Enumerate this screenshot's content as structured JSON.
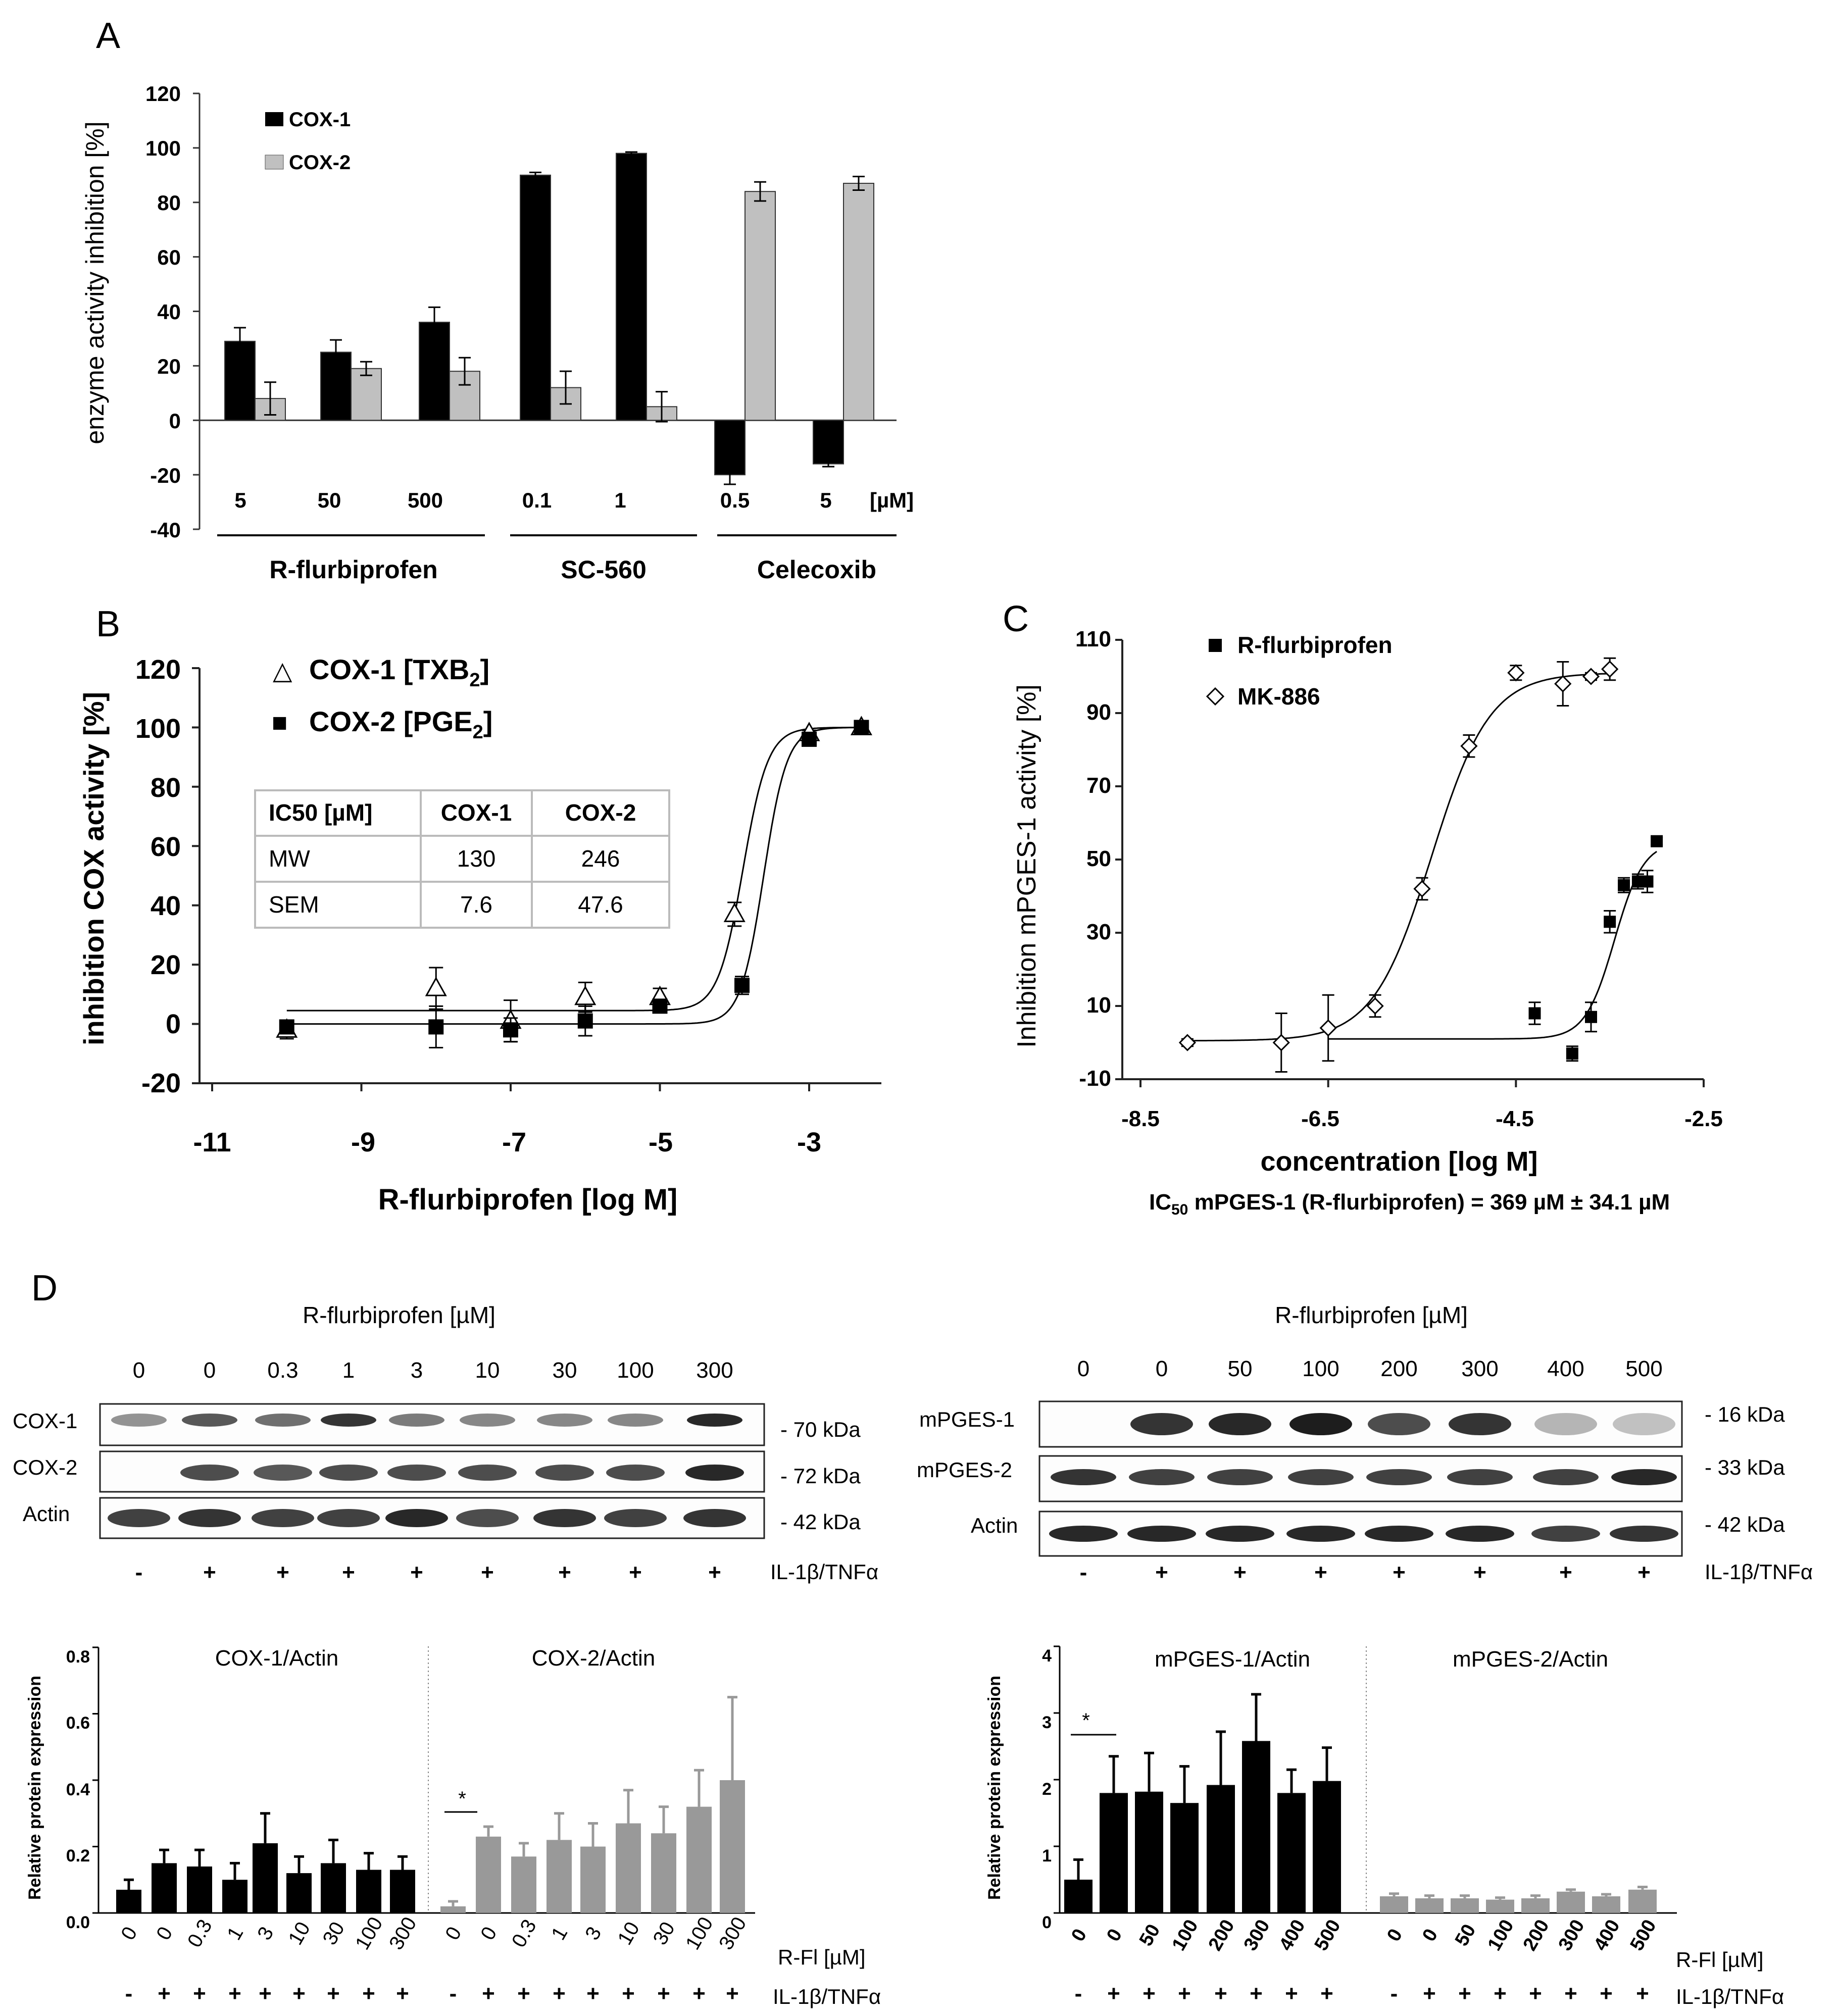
{
  "panels": {
    "A": {
      "letter": "A",
      "ylabel": "enzyme activity inhibition [%]",
      "yticks": [
        "120",
        "100",
        "80",
        "60",
        "40",
        "20",
        "0",
        "-20",
        "-40"
      ],
      "legend": [
        "COX-1",
        "COX-2"
      ],
      "dose_labels": [
        "5",
        "50",
        "500",
        "0.1",
        "1",
        "0.5",
        "5"
      ],
      "unit": "[µM]",
      "groups": [
        "R-flurbiprofen",
        "SC-560",
        "Celecoxib"
      ]
    },
    "B": {
      "letter": "B",
      "ylabel": "inhibition COX activity [%]",
      "xlabel": "R-flurbiprofen [log M]",
      "yticks": [
        "120",
        "100",
        "80",
        "60",
        "40",
        "20",
        "0",
        "-20"
      ],
      "xticks": [
        "-11",
        "-9",
        "-7",
        "-5",
        "-3"
      ],
      "legend": [
        {
          "symbol": "△",
          "main": "COX-1 [TXB",
          "sub": "2",
          "end": "]"
        },
        {
          "symbol": "■",
          "main": "COX-2 [PGE",
          "sub": "2",
          "end": "]"
        }
      ],
      "table": {
        "header": [
          "IC50 [µM]",
          "COX-1",
          "COX-2"
        ],
        "rows": [
          [
            "MW",
            "130",
            "246"
          ],
          [
            "SEM",
            "7.6",
            "47.6"
          ]
        ]
      }
    },
    "C": {
      "letter": "C",
      "ylabel": "Inhibition mPGES-1 activity [%]",
      "xlabel": "concentration [log M]",
      "yticks": [
        "110",
        "90",
        "70",
        "50",
        "30",
        "10",
        "-10"
      ],
      "xticks": [
        "-8.5",
        "-6.5",
        "-4.5",
        "-2.5"
      ],
      "legend": [
        "R-flurbiprofen",
        "MK-886"
      ],
      "ic50": {
        "pre": "IC",
        "sub": "50",
        "post": " mPGES-1 (R-flurbiprofen) = 369 µM ± 34.1 µM"
      }
    },
    "D": {
      "letter": "D",
      "left_blot": {
        "title": "R-flurbiprofen [µM]",
        "lanes": [
          "0",
          "0",
          "0.3",
          "1",
          "3",
          "10",
          "30",
          "100",
          "300"
        ],
        "rows": [
          "COX-1",
          "COX-2",
          "Actin"
        ],
        "kda": [
          "- 70 kDa",
          "- 72 kDa",
          "- 42 kDa"
        ],
        "signs": [
          "-",
          "+",
          "+",
          "+",
          "+",
          "+",
          "+",
          "+",
          "+"
        ],
        "treatment": "IL-1β/TNFα"
      },
      "right_blot": {
        "title": "R-flurbiprofen [µM]",
        "lanes": [
          "0",
          "0",
          "50",
          "100",
          "200",
          "300",
          "400",
          "500"
        ],
        "rows": [
          "mPGES-1",
          "mPGES-2",
          "Actin"
        ],
        "kda": [
          "- 16 kDa",
          "- 33 kDa",
          "- 42 kDa"
        ],
        "signs": [
          "-",
          "+",
          "+",
          "+",
          "+",
          "+",
          "+",
          "+"
        ],
        "treatment": "IL-1β/TNFα"
      },
      "left_bars": {
        "ylabel": "Relative protein expression",
        "yticks": [
          "0.8",
          "0.6",
          "0.4",
          "0.2",
          "0.0"
        ],
        "titles": [
          "COX-1/Actin",
          "COX-2/Actin"
        ],
        "xlabels": [
          "0",
          "0",
          "0.3",
          "1",
          "3",
          "10",
          "30",
          "100",
          "300"
        ],
        "signs": [
          "-",
          "+",
          "+",
          "+",
          "+",
          "+",
          "+",
          "+",
          "+"
        ],
        "rfl": "R-Fl [µM]",
        "treatment": "IL-1β/TNFα",
        "star": "*"
      },
      "right_bars": {
        "ylabel": "Relative protein expression",
        "yticks": [
          "4",
          "3",
          "2",
          "1",
          "0"
        ],
        "titles": [
          "mPGES-1/Actin",
          "mPGES-2/Actin"
        ],
        "xlabels": [
          "0",
          "0",
          "50",
          "100",
          "200",
          "300",
          "400",
          "500"
        ],
        "signs": [
          "-",
          "+",
          "+",
          "+",
          "+",
          "+",
          "+",
          "+"
        ],
        "rfl": "R-Fl [µM]",
        "treatment": "IL-1β/TNFα",
        "star": "*"
      }
    }
  },
  "chart_data": [
    {
      "panel": "A",
      "type": "bar",
      "ylabel": "enzyme activity inhibition [%]",
      "ylim": [
        -40,
        120
      ],
      "categories": [
        "R-flurbiprofen 5 µM",
        "R-flurbiprofen 50 µM",
        "R-flurbiprofen 500 µM",
        "SC-560 0.1 µM",
        "SC-560 1 µM",
        "Celecoxib 0.5 µM",
        "Celecoxib 5 µM"
      ],
      "series": [
        {
          "name": "COX-1",
          "color": "#000000",
          "values": [
            29,
            25,
            36,
            90,
            98,
            -20,
            -16
          ],
          "errors": [
            5,
            4.5,
            5.5,
            1,
            0.5,
            3.5,
            1
          ]
        },
        {
          "name": "COX-2",
          "color": "#c0c0c0",
          "values": [
            8,
            19,
            18,
            12,
            5,
            84,
            87
          ],
          "errors": [
            6,
            2.5,
            5,
            6,
            5.5,
            3.5,
            2.5
          ]
        }
      ]
    },
    {
      "panel": "B",
      "type": "scatter",
      "xlabel": "R-flurbiprofen [log M]",
      "ylabel": "inhibition COX activity [%]",
      "xlim": [
        -11.3,
        -1.8
      ],
      "ylim": [
        -20,
        120
      ],
      "series": [
        {
          "name": "COX-1 [TXB2]",
          "marker": "triangle-open",
          "x": [
            -10,
            -8,
            -7,
            -6,
            -5,
            -4,
            -3,
            -2.3
          ],
          "y": [
            -2,
            12,
            1,
            9,
            9,
            37,
            98,
            100
          ],
          "errors": [
            3,
            7,
            7,
            5,
            3,
            4,
            1,
            1
          ],
          "ic50_uM": 130
        },
        {
          "name": "COX-2 [PGE2]",
          "marker": "square-filled",
          "x": [
            -10,
            -8,
            -7,
            -6,
            -5,
            -3.9,
            -3,
            -2.3
          ],
          "y": [
            -1,
            -1,
            -2,
            1,
            6,
            13,
            96,
            100
          ],
          "errors": [
            2,
            7,
            4,
            5,
            2,
            3,
            2,
            1
          ],
          "ic50_uM": 246
        }
      ]
    },
    {
      "panel": "C",
      "type": "scatter",
      "xlabel": "concentration [log M]",
      "ylabel": "Inhibition mPGES-1 activity [%]",
      "xlim": [
        -8.5,
        -2.5
      ],
      "ylim": [
        -10,
        110
      ],
      "series": [
        {
          "name": "R-flurbiprofen",
          "marker": "square-filled",
          "x": [
            -4.3,
            -3.9,
            -3.7,
            -3.5,
            -3.35,
            -3.2,
            -3.1,
            -3.0
          ],
          "y": [
            8,
            -3,
            7,
            33,
            43,
            44,
            44,
            55
          ],
          "errors": [
            3,
            2,
            4,
            3,
            2,
            2,
            3,
            1
          ],
          "ic50": "369 µM ± 34.1 µM"
        },
        {
          "name": "MK-886",
          "marker": "diamond-open",
          "x": [
            -8.0,
            -7.0,
            -6.5,
            -6.0,
            -5.5,
            -5.0,
            -4.5,
            -4.0,
            -3.7,
            -3.5
          ],
          "y": [
            0,
            0,
            4,
            10,
            42,
            81,
            101,
            98,
            100,
            102
          ],
          "errors": [
            1,
            8,
            9,
            3,
            3,
            3,
            2,
            6,
            1,
            3
          ]
        }
      ]
    },
    {
      "panel": "D-left",
      "type": "bar",
      "ylabel": "Relative protein expression",
      "ylim": [
        0,
        0.8
      ],
      "categories": [
        "0 -",
        "0 +",
        "0.3 +",
        "1 +",
        "3 +",
        "10 +",
        "30 +",
        "100 +",
        "300 +"
      ],
      "series": [
        {
          "name": "COX-1/Actin",
          "color": "#000000",
          "values": [
            0.07,
            0.15,
            0.14,
            0.1,
            0.21,
            0.12,
            0.15,
            0.13,
            0.13
          ],
          "errors": [
            0.03,
            0.04,
            0.05,
            0.05,
            0.09,
            0.05,
            0.07,
            0.05,
            0.04
          ]
        },
        {
          "name": "COX-2/Actin",
          "color": "#999999",
          "values": [
            0.02,
            0.23,
            0.17,
            0.22,
            0.2,
            0.27,
            0.24,
            0.32,
            0.4
          ],
          "errors": [
            0.015,
            0.03,
            0.04,
            0.08,
            0.07,
            0.1,
            0.08,
            0.11,
            0.25
          ]
        }
      ]
    },
    {
      "panel": "D-right",
      "type": "bar",
      "ylabel": "Relative protein expression",
      "ylim": [
        0,
        4
      ],
      "categories": [
        "0 -",
        "0 +",
        "50 +",
        "100 +",
        "200 +",
        "300 +",
        "400 +",
        "500 +"
      ],
      "series": [
        {
          "name": "mPGES-1/Actin",
          "color": "#000000",
          "values": [
            0.5,
            1.8,
            1.82,
            1.65,
            1.92,
            2.58,
            1.8,
            1.98
          ],
          "errors": [
            0.3,
            0.55,
            0.58,
            0.55,
            0.8,
            0.7,
            0.35,
            0.5
          ]
        },
        {
          "name": "mPGES-2/Actin",
          "color": "#999999",
          "values": [
            0.25,
            0.22,
            0.22,
            0.2,
            0.22,
            0.32,
            0.25,
            0.35
          ],
          "errors": [
            0.04,
            0.04,
            0.04,
            0.03,
            0.04,
            0.03,
            0.03,
            0.04
          ]
        }
      ]
    }
  ]
}
